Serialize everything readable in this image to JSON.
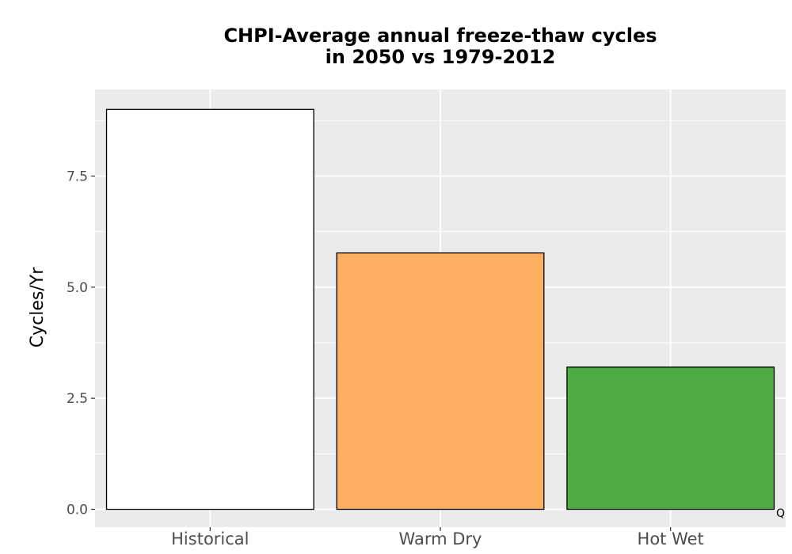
{
  "chart_data": {
    "type": "bar",
    "title_lines": [
      "CHPI-Average annual freeze-thaw cycles",
      "in 2050 vs 1979-2012"
    ],
    "xlabel": "",
    "ylabel": "Cycles/Yr",
    "categories": [
      "Historical",
      "Warm Dry",
      "Hot Wet"
    ],
    "values": [
      9.0,
      5.77,
      3.2
    ],
    "bar_colors": [
      "#ffffff",
      "#fdae61",
      "#4dac41"
    ],
    "bar_outline_color": "#000000",
    "ylim": [
      -0.4,
      9.45
    ],
    "y_ticks": [
      0,
      2.5,
      5,
      7.5
    ],
    "y_tick_labels": [
      "0.0",
      "2.5",
      "5.0",
      "7.5"
    ],
    "grid": true,
    "panel_background": "#ebebeb",
    "grid_color": "#ffffff",
    "corner_note": "Q"
  }
}
